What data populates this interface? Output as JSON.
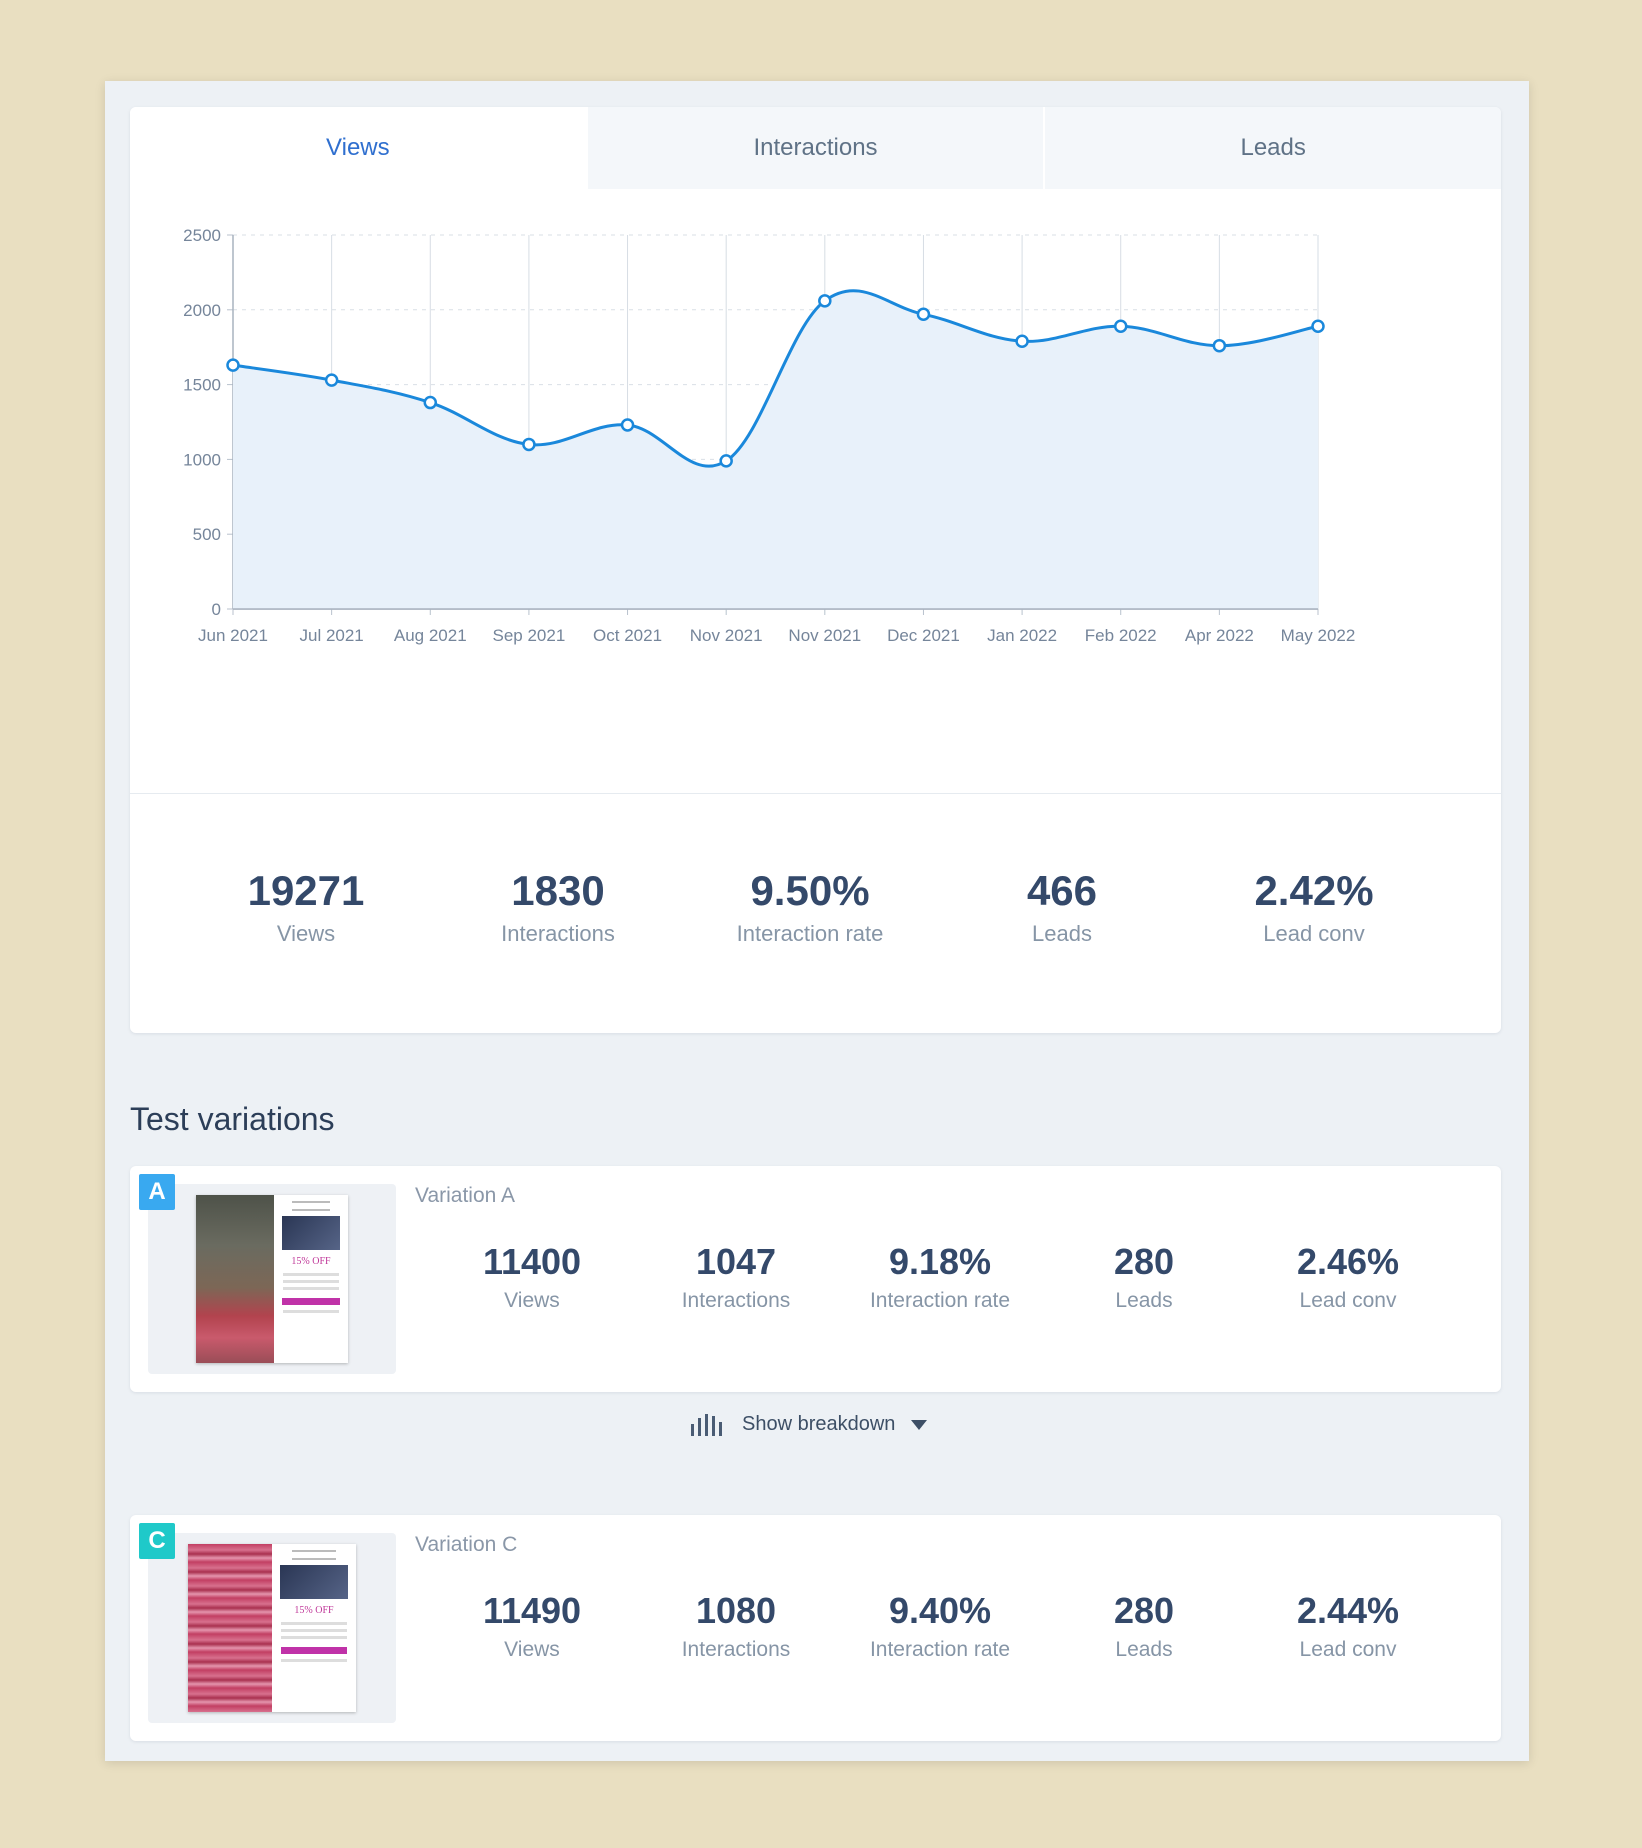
{
  "tabs": [
    "Views",
    "Interactions",
    "Leads"
  ],
  "active_tab": "Views",
  "colors": {
    "accent": "#2f6fcf",
    "line": "#1a88db",
    "area": "#e8f1fa",
    "badge_a": "#39a9f0",
    "badge_c": "#1fc9c9"
  },
  "chart_data": {
    "type": "area",
    "categories": [
      "Jun 2021",
      "Jul 2021",
      "Aug 2021",
      "Sep 2021",
      "Oct 2021",
      "Nov 2021",
      "Nov 2021",
      "Dec 2021",
      "Jan 2022",
      "Feb 2022",
      "Apr 2022",
      "May 2022"
    ],
    "values": [
      1630,
      1530,
      1380,
      1100,
      1230,
      990,
      2060,
      1970,
      1790,
      1890,
      1760,
      1890
    ],
    "y_ticks": [
      0,
      500,
      1000,
      1500,
      2000,
      2500
    ],
    "ylim": [
      0,
      2500
    ],
    "grid": "horizontal dashed, vertical solid",
    "title": "",
    "xlabel": "",
    "ylabel": ""
  },
  "summary": [
    {
      "value": "19271",
      "label": "Views"
    },
    {
      "value": "1830",
      "label": "Interactions"
    },
    {
      "value": "9.50%",
      "label": "Interaction rate"
    },
    {
      "value": "466",
      "label": "Leads"
    },
    {
      "value": "2.42%",
      "label": "Lead conv"
    }
  ],
  "section_title": "Test variations",
  "variations": [
    {
      "badge": "A",
      "name": "Variation A",
      "thumb_offer": "15% OFF",
      "stats": [
        {
          "value": "11400",
          "label": "Views"
        },
        {
          "value": "1047",
          "label": "Interactions"
        },
        {
          "value": "9.18%",
          "label": "Interaction rate"
        },
        {
          "value": "280",
          "label": "Leads"
        },
        {
          "value": "2.46%",
          "label": "Lead conv"
        }
      ]
    },
    {
      "badge": "C",
      "name": "Variation C",
      "thumb_offer": "15% OFF",
      "stats": [
        {
          "value": "11490",
          "label": "Views"
        },
        {
          "value": "1080",
          "label": "Interactions"
        },
        {
          "value": "9.40%",
          "label": "Interaction rate"
        },
        {
          "value": "280",
          "label": "Leads"
        },
        {
          "value": "2.44%",
          "label": "Lead conv"
        }
      ]
    }
  ],
  "breakdown_label": "Show breakdown",
  "icons": {
    "breakdown": "bar-chart-icon",
    "caret": "caret-down-icon"
  }
}
